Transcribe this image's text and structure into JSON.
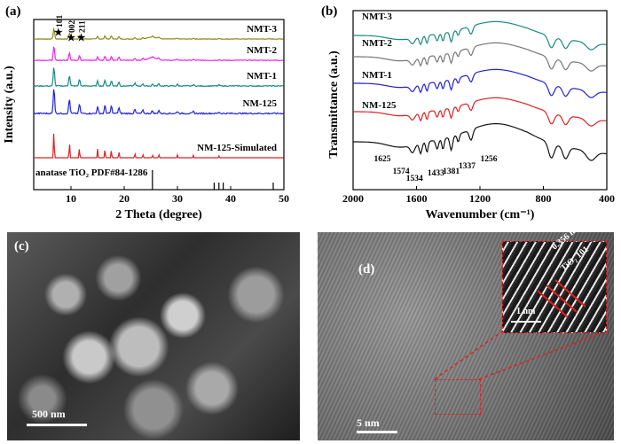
{
  "panels": {
    "a": {
      "tag": "(a)"
    },
    "b": {
      "tag": "(b)"
    },
    "c": {
      "tag": "(c)",
      "scale_bar": "500 nm"
    },
    "d": {
      "tag": "(d)",
      "scale_bar": "5 nm",
      "inset_scale_bar": "1 nm",
      "inset_spacing": "0.356 nm",
      "inset_plane": "TiO₂ 101"
    }
  },
  "chart_data": [
    {
      "type": "line",
      "panel": "a",
      "xlabel": "2 Theta (degree)",
      "ylabel": "Intensity (a.u.)",
      "xlim": [
        3,
        50
      ],
      "x_ticks": [
        "10",
        "20",
        "30",
        "40",
        "50"
      ],
      "series": [
        {
          "name": "NMT-3",
          "color": "#8a8a1a"
        },
        {
          "name": "NMT-2",
          "color": "#ee22ee"
        },
        {
          "name": "NMT-1",
          "color": "#1a8a80"
        },
        {
          "name": "NM-125",
          "color": "#2222dd"
        },
        {
          "name": "NM-125-Simulated",
          "color": "#dd2222"
        }
      ],
      "reference": {
        "name": "anatase TiO₂ PDF#84-1286",
        "lines": [
          25.3,
          36.9,
          37.8,
          38.6,
          48.0
        ]
      },
      "peak_markers": [
        {
          "label": "101",
          "x": 7.3
        },
        {
          "label": "002",
          "x": 9.7
        },
        {
          "label": "211",
          "x": 11.6
        }
      ]
    },
    {
      "type": "line",
      "panel": "b",
      "xlabel": "Wavenumber (cm⁻¹)",
      "ylabel": "Transmittance (a.u.)",
      "xlim": [
        2000,
        400
      ],
      "x_ticks": [
        "2000",
        "1600",
        "1200",
        "800",
        "400"
      ],
      "series": [
        {
          "name": "NMT-3",
          "color": "#1a8a80"
        },
        {
          "name": "NMT-2",
          "color": "#777777"
        },
        {
          "name": "NMT-1",
          "color": "#2222dd"
        },
        {
          "name": "NM-125",
          "color": "#dd2222"
        },
        {
          "name": "",
          "color": "#111111"
        }
      ],
      "annotations": [
        "1625",
        "1574",
        "1534",
        "1433",
        "1381",
        "1337",
        "1256"
      ]
    }
  ]
}
